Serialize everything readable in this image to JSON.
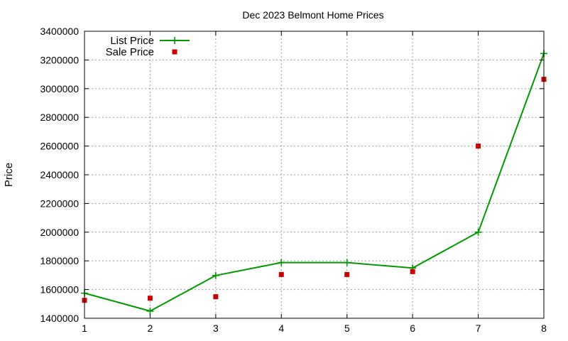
{
  "chart_data": {
    "type": "line",
    "title": "Dec 2023 Belmont Home Prices",
    "xlabel": "",
    "ylabel": "Price",
    "x": [
      1,
      2,
      3,
      4,
      5,
      6,
      7,
      8
    ],
    "xlim": [
      1,
      8
    ],
    "ylim": [
      1400000,
      3400000
    ],
    "x_ticks": [
      "1",
      "2",
      "3",
      "4",
      "5",
      "6",
      "7",
      "8"
    ],
    "y_ticks": [
      "1400000",
      "1600000",
      "1800000",
      "2000000",
      "2200000",
      "2400000",
      "2600000",
      "2800000",
      "3000000",
      "3200000",
      "3400000"
    ],
    "grid": true,
    "legend_position": "top-left",
    "series": [
      {
        "name": "List Price",
        "style": "lines+points",
        "marker": "plus",
        "color": "#009900",
        "values": [
          1575000,
          1450000,
          1698000,
          1788000,
          1788000,
          1750000,
          2000000,
          3245000
        ]
      },
      {
        "name": "Sale Price",
        "style": "points",
        "marker": "square",
        "color": "#cc0000",
        "values": [
          1525000,
          1540000,
          1550000,
          1705000,
          1705000,
          1725000,
          2600000,
          3065000
        ]
      }
    ]
  }
}
